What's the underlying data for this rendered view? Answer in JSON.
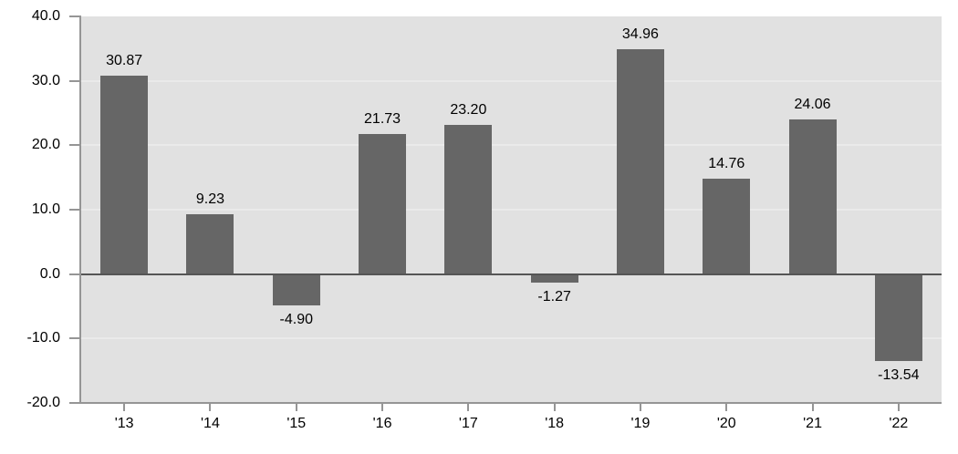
{
  "chart_data": {
    "type": "bar",
    "categories": [
      "'13",
      "'14",
      "'15",
      "'16",
      "'17",
      "'18",
      "'19",
      "'20",
      "'21",
      "'22"
    ],
    "values": [
      30.87,
      9.23,
      -4.9,
      21.73,
      23.2,
      -1.27,
      34.96,
      14.76,
      24.06,
      -13.54
    ],
    "value_labels": [
      "30.87",
      "9.23",
      "-4.90",
      "21.73",
      "23.20",
      "-1.27",
      "34.96",
      "14.76",
      "24.06",
      "-13.54"
    ],
    "y_ticks": [
      40,
      30,
      20,
      10,
      0,
      -10,
      -20
    ],
    "y_tick_labels": [
      "40.0",
      "30.0",
      "20.0",
      "10.0",
      "0.0",
      "-10.0",
      "-20.0"
    ],
    "ylim": [
      -20,
      40
    ],
    "grid": true,
    "legend": "none",
    "colors": {
      "bar": "#666666",
      "plot_bg": "#e1e1e1",
      "gridline": "#eaeaea",
      "zero_line": "#555555",
      "axis": "#959595",
      "label": "#000000",
      "page_bg": "#ffffff"
    }
  }
}
